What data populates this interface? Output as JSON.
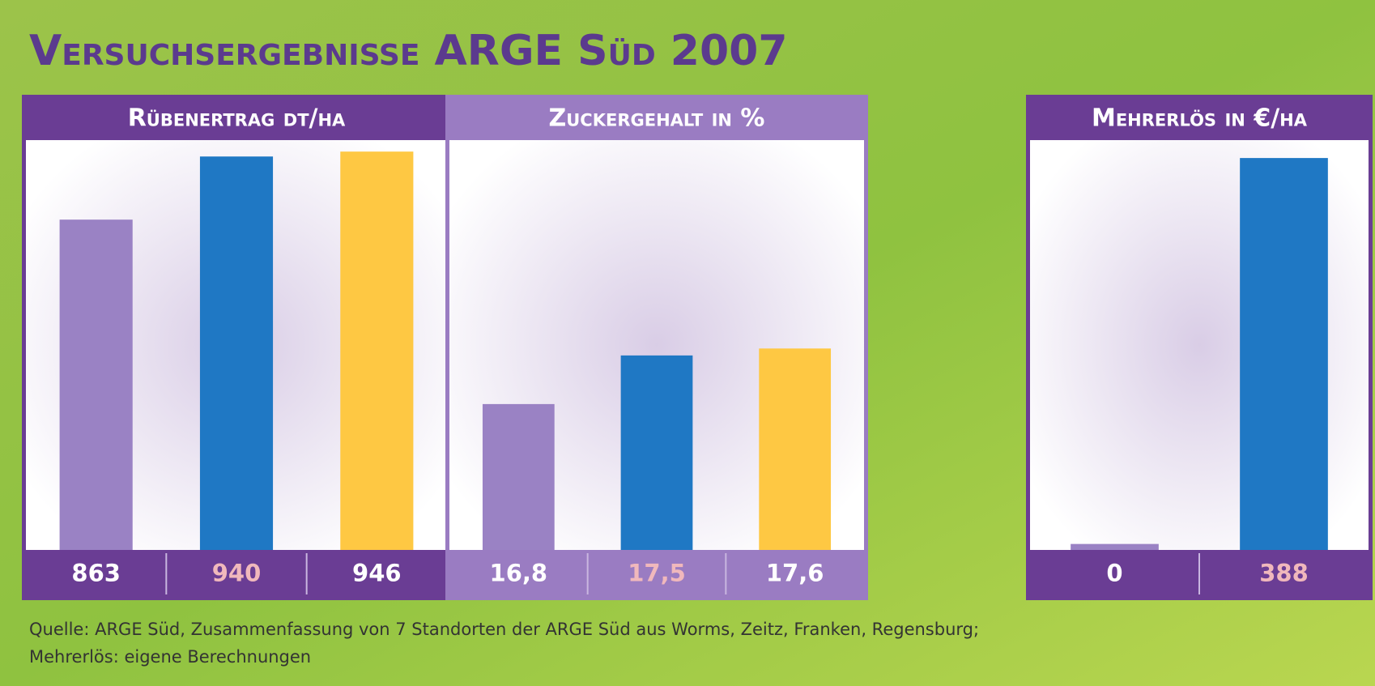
{
  "title": "Versuchsergebnisse ARGE Süd 2007",
  "chart_data": [
    {
      "type": "bar",
      "title": "Rübenertrag dt/ha",
      "values": [
        863,
        940,
        946
      ],
      "colors": [
        "#9a82c4",
        "#1f78c4",
        "#fec843"
      ],
      "header_color": "#6a3d94",
      "ylim": [
        460,
        960
      ]
    },
    {
      "type": "bar",
      "title": "Zuckergehalt in %",
      "values": [
        16.8,
        17.5,
        17.6
      ],
      "value_labels": [
        "16,8",
        "17,5",
        "17,6"
      ],
      "colors": [
        "#9a82c4",
        "#1f78c4",
        "#fec843"
      ],
      "header_color": "#9a7cc2",
      "ylim": [
        14.7,
        20.6
      ]
    },
    {
      "type": "bar",
      "title": "Mehrerlös in €/ha",
      "values": [
        0,
        388
      ],
      "colors": [
        "#9a82c4",
        "#1f78c4"
      ],
      "header_color": "#6a3d94",
      "ylim": [
        -6,
        406
      ]
    }
  ],
  "source": [
    "Quelle: ARGE Süd, Zusammenfassung von 7 Standorten der ARGE Süd aus Worms, Zeitz, Franken, Regensburg;",
    "Mehrerlös: eigene Berechnungen"
  ]
}
